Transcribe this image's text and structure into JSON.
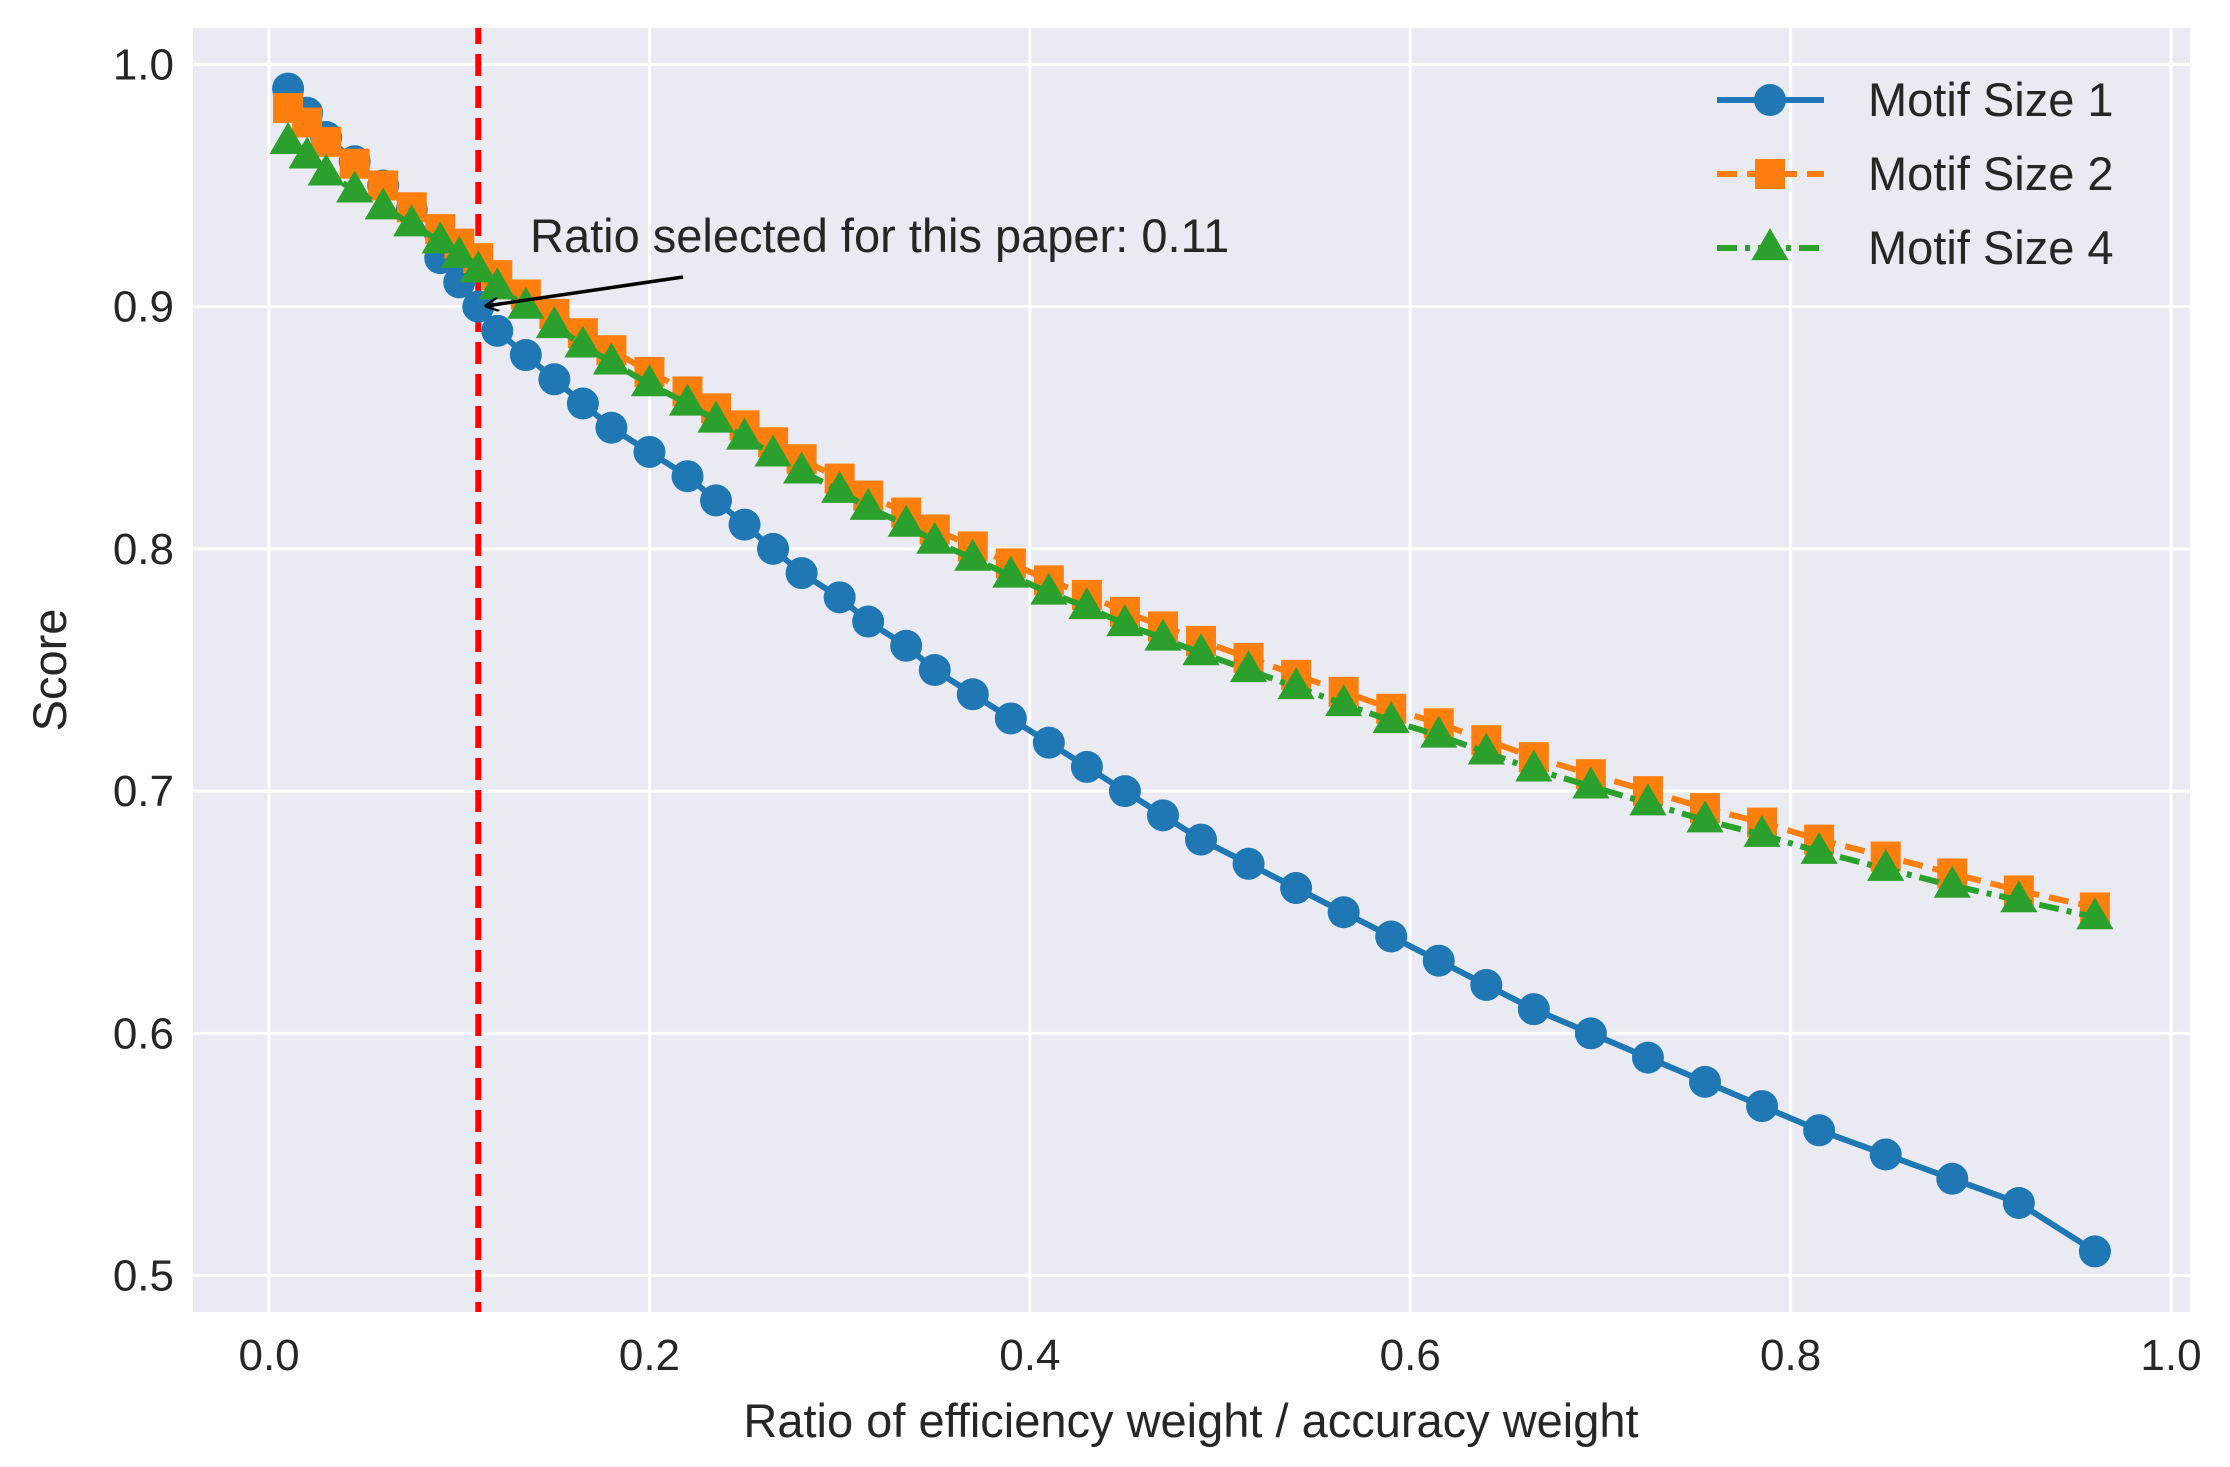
{
  "chart_data": {
    "type": "line",
    "title": "",
    "xlabel": "Ratio of efficiency weight / accuracy weight",
    "ylabel": "Score",
    "xlim": [
      -0.04,
      1.01
    ],
    "ylim": [
      0.485,
      1.015
    ],
    "xticks": [
      0.0,
      0.2,
      0.4,
      0.6,
      0.8,
      1.0
    ],
    "xtick_labels": [
      "0.0",
      "0.2",
      "0.4",
      "0.6",
      "0.8",
      "1.0"
    ],
    "yticks": [
      0.5,
      0.6,
      0.7,
      0.8,
      0.9,
      1.0
    ],
    "ytick_labels": [
      "0.5",
      "0.6",
      "0.7",
      "0.8",
      "0.9",
      "1.0"
    ],
    "grid": true,
    "legend_position": "top-right",
    "background": "#EAEAF2",
    "series": [
      {
        "name": "Motif Size 1",
        "color": "#1f77b4",
        "marker": "circle",
        "linestyle": "solid",
        "x": [
          0.01,
          0.02,
          0.03,
          0.045,
          0.06,
          0.075,
          0.09,
          0.1,
          0.11,
          0.12,
          0.135,
          0.15,
          0.165,
          0.18,
          0.2,
          0.22,
          0.235,
          0.25,
          0.265,
          0.28,
          0.3,
          0.315,
          0.335,
          0.35,
          0.37,
          0.39,
          0.41,
          0.43,
          0.45,
          0.47,
          0.49,
          0.515,
          0.54,
          0.565,
          0.59,
          0.615,
          0.64,
          0.665,
          0.695,
          0.725,
          0.755,
          0.785,
          0.815,
          0.85,
          0.885,
          0.92,
          0.96
        ],
        "y": [
          0.99,
          0.98,
          0.97,
          0.96,
          0.95,
          0.94,
          0.92,
          0.91,
          0.9,
          0.89,
          0.88,
          0.87,
          0.86,
          0.85,
          0.84,
          0.83,
          0.82,
          0.81,
          0.8,
          0.79,
          0.78,
          0.77,
          0.76,
          0.75,
          0.74,
          0.73,
          0.72,
          0.71,
          0.7,
          0.69,
          0.68,
          0.67,
          0.66,
          0.65,
          0.64,
          0.63,
          0.62,
          0.61,
          0.6,
          0.59,
          0.58,
          0.57,
          0.56,
          0.55,
          0.54,
          0.53,
          0.51
        ]
      },
      {
        "name": "Motif Size 2",
        "color": "#ff7f0e",
        "marker": "square",
        "linestyle": "dashed",
        "x": [
          0.01,
          0.02,
          0.03,
          0.045,
          0.06,
          0.075,
          0.09,
          0.1,
          0.11,
          0.12,
          0.135,
          0.15,
          0.165,
          0.18,
          0.2,
          0.22,
          0.235,
          0.25,
          0.265,
          0.28,
          0.3,
          0.315,
          0.335,
          0.35,
          0.37,
          0.39,
          0.41,
          0.43,
          0.45,
          0.47,
          0.49,
          0.515,
          0.54,
          0.565,
          0.59,
          0.615,
          0.64,
          0.665,
          0.695,
          0.725,
          0.755,
          0.785,
          0.815,
          0.85,
          0.885,
          0.92,
          0.96
        ],
        "y": [
          0.982,
          0.976,
          0.968,
          0.959,
          0.95,
          0.941,
          0.932,
          0.926,
          0.92,
          0.913,
          0.905,
          0.897,
          0.889,
          0.882,
          0.873,
          0.865,
          0.858,
          0.851,
          0.844,
          0.837,
          0.829,
          0.822,
          0.815,
          0.808,
          0.801,
          0.794,
          0.787,
          0.781,
          0.774,
          0.768,
          0.762,
          0.755,
          0.748,
          0.741,
          0.734,
          0.728,
          0.721,
          0.714,
          0.707,
          0.7,
          0.693,
          0.687,
          0.68,
          0.673,
          0.666,
          0.659,
          0.652
        ]
      },
      {
        "name": "Motif Size 4",
        "color": "#2ca02c",
        "marker": "triangle",
        "linestyle": "dashdot",
        "x": [
          0.01,
          0.02,
          0.03,
          0.045,
          0.06,
          0.075,
          0.09,
          0.1,
          0.11,
          0.12,
          0.135,
          0.15,
          0.165,
          0.18,
          0.2,
          0.22,
          0.235,
          0.25,
          0.265,
          0.28,
          0.3,
          0.315,
          0.335,
          0.35,
          0.37,
          0.39,
          0.41,
          0.43,
          0.45,
          0.47,
          0.49,
          0.515,
          0.54,
          0.565,
          0.59,
          0.615,
          0.64,
          0.665,
          0.695,
          0.725,
          0.755,
          0.785,
          0.815,
          0.85,
          0.885,
          0.92,
          0.96
        ],
        "y": [
          0.968,
          0.962,
          0.955,
          0.948,
          0.941,
          0.934,
          0.927,
          0.921,
          0.915,
          0.908,
          0.9,
          0.892,
          0.884,
          0.877,
          0.868,
          0.86,
          0.853,
          0.846,
          0.839,
          0.832,
          0.824,
          0.817,
          0.81,
          0.803,
          0.796,
          0.789,
          0.782,
          0.776,
          0.769,
          0.763,
          0.757,
          0.75,
          0.743,
          0.736,
          0.729,
          0.723,
          0.716,
          0.709,
          0.702,
          0.695,
          0.688,
          0.682,
          0.675,
          0.668,
          0.661,
          0.655,
          0.648
        ]
      }
    ],
    "vline": {
      "x": 0.11,
      "color": "#ff0000",
      "linestyle": "dashed"
    },
    "annotation": {
      "text": "Ratio selected for this paper: 0.11",
      "xy": [
        0.11,
        0.9
      ],
      "xytext": [
        0.14,
        0.925
      ]
    }
  }
}
